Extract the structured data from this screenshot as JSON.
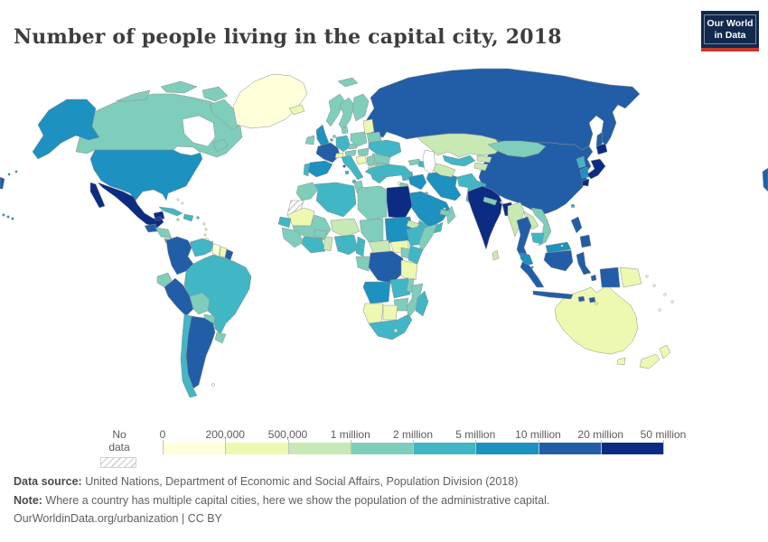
{
  "header": {
    "title": "Number of people living in the capital city, 2018",
    "logo": {
      "line1": "Our World",
      "line2": "in Data",
      "bg_color": "#12294e",
      "accent_color": "#c9382e"
    }
  },
  "chart_data": {
    "type": "choropleth_map",
    "title": "Number of people living in the capital city, 2018",
    "year": "2018",
    "legend_tick_labels": [
      "0",
      "200,000",
      "500,000",
      "1 million",
      "2 million",
      "5 million",
      "10 million",
      "20 million",
      "50 million"
    ],
    "bin_colors": [
      "#ffffd9",
      "#edf8b1",
      "#c7e9b4",
      "#7fcdbb",
      "#41b6c4",
      "#1d91c0",
      "#225ea8",
      "#0c2c84"
    ],
    "no_data_label": "No data",
    "countries_bin_index": {
      "canada": 3,
      "usa": 5,
      "greenland": 0,
      "mexico": 7,
      "guatemala": 6,
      "honduras-nicaragua": 3,
      "costa-rica-panama": 4,
      "cuba": 4,
      "hispaniola": 4,
      "jamaica": 2,
      "puerto-rico": 4,
      "bahamas": 0,
      "lesser-antilles": 1,
      "trinidad": 0,
      "colombia": 6,
      "venezuela": 4,
      "guyana": 0,
      "suriname": 1,
      "french-guiana": 6,
      "ecuador": 3,
      "peru": 6,
      "brazil": 4,
      "bolivia": 3,
      "paraguay": 3,
      "uruguay": 3,
      "argentina": 6,
      "chile": 4,
      "falkland": 0,
      "iceland": 1,
      "ireland": 3,
      "uk": 5,
      "portugal": 4,
      "spain": 5,
      "france": 6,
      "belgium": 4,
      "netherlands": 3,
      "germany": 4,
      "denmark": 3,
      "switzerland": 1,
      "italy": 4,
      "austria": 3,
      "czechia": 3,
      "poland": 3,
      "norway": 3,
      "sweden": 3,
      "finland": 3,
      "svalbard": 3,
      "baltics": 1,
      "belarus": 3,
      "ukraine": 4,
      "romania": 3,
      "hungary": 3,
      "croatia-bosnia": 1,
      "serbia": 3,
      "albania-macedonia": 2,
      "bulgaria": 3,
      "greece": 4,
      "cyprus": 1,
      "russia": 6,
      "kazakhstan": 2,
      "uzbekistan": 4,
      "turkmenistan": 2,
      "kyrgyzstan": 2,
      "tajikistan": 2,
      "mongolia": 3,
      "china": 6,
      "taiwan": 4,
      "north-korea": 4,
      "south-korea": 5,
      "japan": 7,
      "turkey": 4,
      "georgia": 3,
      "azerbaijan": 4,
      "syria": 4,
      "iraq": 5,
      "iran": 5,
      "jordan-israel": 3,
      "saudi-arabia": 5,
      "yemen": 4,
      "oman": 3,
      "uae": 3,
      "kuwait": 4,
      "qatar": 2,
      "afghanistan": 4,
      "pakistan": 4,
      "india": 7,
      "nepal": 3,
      "bhutan": 2,
      "bangladesh": 7,
      "sri-lanka": 2,
      "myanmar": 2,
      "laos": 2,
      "vietnam": 3,
      "thailand": 6,
      "cambodia": 4,
      "malaysia": 5,
      "singapore": 5,
      "brunei": 0,
      "indonesia": 6,
      "timor": 1,
      "philippines": 6,
      "papua-new-guinea": 1,
      "pacific-islands": 0,
      "australia": 1,
      "new-zealand": 1,
      "morocco": 3,
      "western-sahara": "nodata",
      "mauritania": 1,
      "algeria": 4,
      "tunisia": 3,
      "libya": 3,
      "egypt": 7,
      "mali": 3,
      "senegal": 4,
      "guinea": 3,
      "ivory-coast-ghana": 4,
      "togo-benin": 2,
      "burkina-faso": 3,
      "niger": 2,
      "nigeria": 4,
      "chad": 3,
      "sudan": 5,
      "eritrea": 2,
      "ethiopia": 4,
      "somalia": 3,
      "south-sudan": 1,
      "central-african-republic": 2,
      "cameroon": 4,
      "gabon-congo": 3,
      "dr-congo": 6,
      "uganda": 3,
      "kenya": 4,
      "tanzania": 1,
      "angola": 5,
      "zambia": 4,
      "malawi": 3,
      "mozambique": 3,
      "zimbabwe": 3,
      "namibia": 1,
      "botswana": 1,
      "south-africa": 4,
      "lesotho": 1,
      "madagascar": 4,
      "map-edge-fragment": 6
    }
  },
  "footer": {
    "source_label": "Data source:",
    "source_text": " United Nations, Department of Economic and Social Affairs, Population Division (2018)",
    "note_label": "Note:",
    "note_text": " Where a country has multiple capital cities, here we show the population of the administrative capital.",
    "credit": "OurWorldinData.org/urbanization | CC BY"
  }
}
